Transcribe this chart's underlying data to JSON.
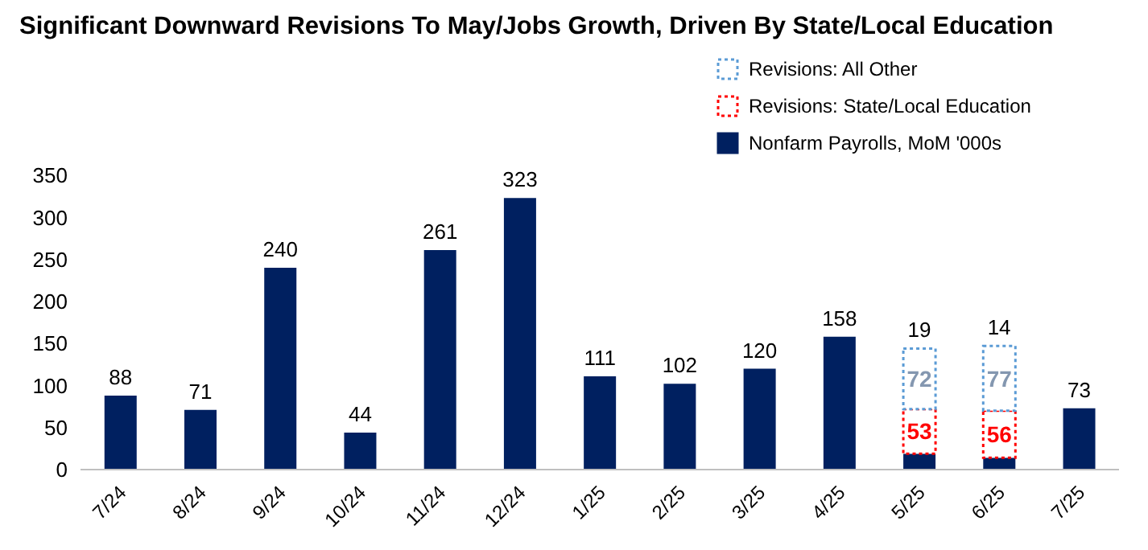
{
  "chart_data": {
    "type": "bar",
    "title": "Significant Downward Revisions To May/Jobs Growth, Driven By State/Local Education",
    "categories": [
      "7/24",
      "8/24",
      "9/24",
      "10/24",
      "11/24",
      "12/24",
      "1/25",
      "2/25",
      "3/25",
      "4/25",
      "5/25",
      "6/25",
      "7/25"
    ],
    "stacked": true,
    "series": [
      {
        "name": "Nonfarm Payrolls, MoM '000s",
        "color": "#002060",
        "values": [
          88,
          71,
          240,
          44,
          261,
          323,
          111,
          102,
          120,
          158,
          19,
          14,
          73
        ],
        "value_labels": [
          "88",
          "71",
          "240",
          "44",
          "261",
          "323",
          "111",
          "102",
          "120",
          "158",
          null,
          null,
          "73"
        ]
      },
      {
        "name": "Revisions: State/Local Education",
        "color": "#ff0000",
        "line_style": "dotted",
        "values": [
          null,
          null,
          null,
          null,
          null,
          null,
          null,
          null,
          null,
          null,
          53,
          56,
          null
        ],
        "value_labels": [
          null,
          null,
          null,
          null,
          null,
          null,
          null,
          null,
          null,
          null,
          "53",
          "56",
          null
        ]
      },
      {
        "name": "Revisions: All Other",
        "color": "#5b9bd5",
        "line_style": "dotted",
        "values": [
          null,
          null,
          null,
          null,
          null,
          null,
          null,
          null,
          null,
          null,
          72,
          77,
          null
        ],
        "value_labels": [
          null,
          null,
          null,
          null,
          null,
          null,
          null,
          null,
          null,
          null,
          "72",
          "77",
          null
        ]
      }
    ],
    "annotations": [
      {
        "text": "19",
        "x": "5/25",
        "y": 144
      },
      {
        "text": "14",
        "x": "6/25",
        "y": 147
      }
    ],
    "ylim": [
      0,
      350
    ],
    "yticks": [
      0,
      50,
      100,
      150,
      200,
      250,
      300,
      350
    ],
    "grid": false,
    "legend": "top right"
  }
}
